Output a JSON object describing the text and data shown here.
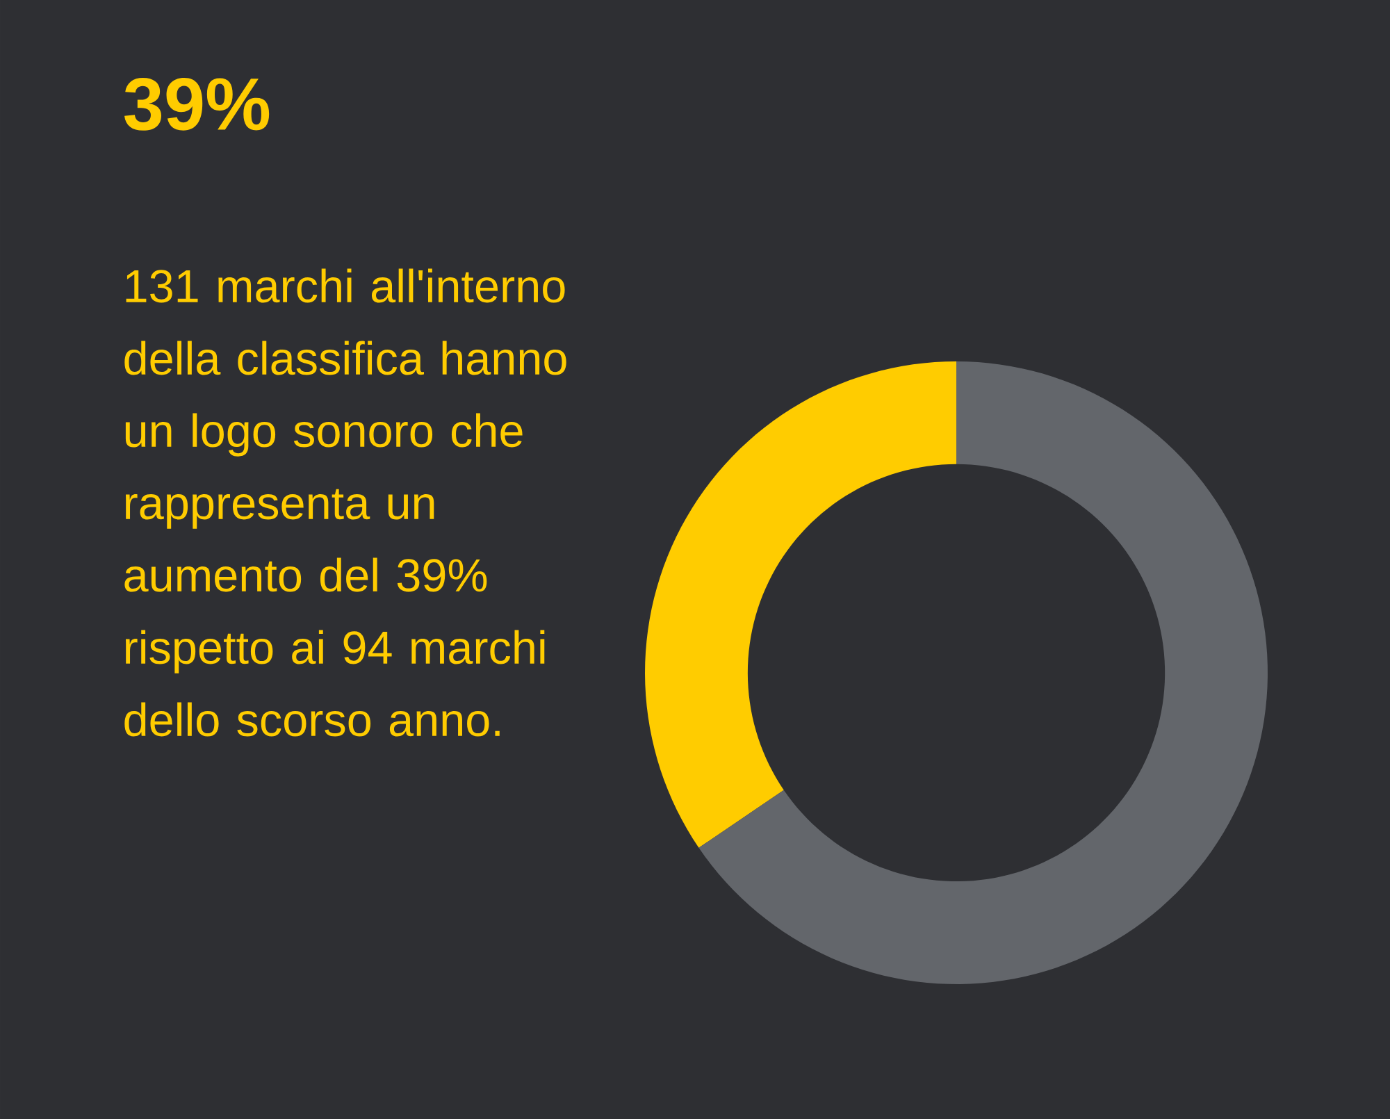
{
  "chart_data": {
    "type": "donut",
    "title": "39%",
    "annotations": [
      "131 marchi all'interno della classifica hanno un logo sonoro che rappresenta un aumento del 39% rispetto ai 94 marchi dello scorso anno."
    ],
    "categories": [
      null,
      null
    ],
    "values": [
      34.5,
      65.5
    ],
    "colors": [
      "#ffcc00",
      "#63666b"
    ]
  }
}
